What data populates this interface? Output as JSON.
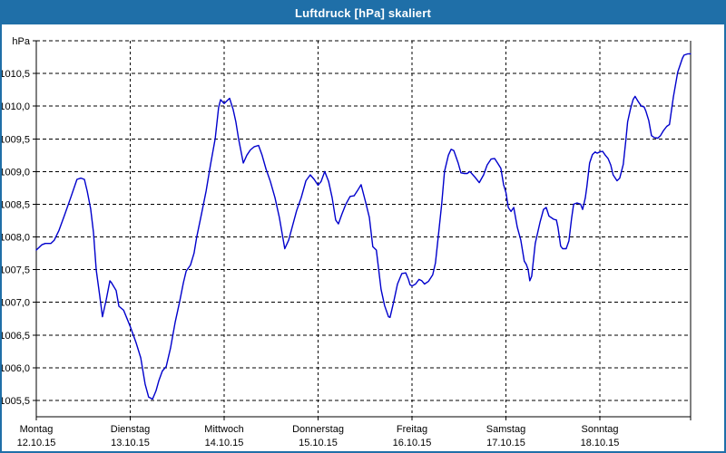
{
  "window": {
    "title": "Luftdruck [hPa] skaliert"
  },
  "colors": {
    "titlebar_bg": "#1f6fa8",
    "window_border": "#1f6fa8",
    "line": "#0000cc",
    "grid": "#000000",
    "frame": "#000000",
    "background": "#ffffff"
  },
  "chart_data": {
    "type": "line",
    "title": "Luftdruck [hPa] skaliert",
    "y_unit_label": "hPa",
    "decimal_separator": ",",
    "grid": "dashed",
    "legend_position": "none",
    "ylim": [
      1005.25,
      1011.0
    ],
    "x_max_hours": 167.2,
    "y_ticks": [
      {
        "value": 1011.0,
        "label": ""
      },
      {
        "value": 1010.5,
        "label": "1010,5"
      },
      {
        "value": 1010.0,
        "label": "1010,0"
      },
      {
        "value": 1009.5,
        "label": "1009,5"
      },
      {
        "value": 1009.0,
        "label": "1009,0"
      },
      {
        "value": 1008.5,
        "label": "1008,5"
      },
      {
        "value": 1008.0,
        "label": "1008,0"
      },
      {
        "value": 1007.5,
        "label": "1007,5"
      },
      {
        "value": 1007.0,
        "label": "1007,0"
      },
      {
        "value": 1006.5,
        "label": "1006,5"
      },
      {
        "value": 1006.0,
        "label": "1006,0"
      },
      {
        "value": 1005.5,
        "label": "1005,5"
      }
    ],
    "x_days": [
      {
        "name": "Montag",
        "date": "12.10.15"
      },
      {
        "name": "Dienstag",
        "date": "13.10.15"
      },
      {
        "name": "Mittwoch",
        "date": "14.10.15"
      },
      {
        "name": "Donnerstag",
        "date": "15.10.15"
      },
      {
        "name": "Freitag",
        "date": "16.10.15"
      },
      {
        "name": "Samstag",
        "date": "17.10.15"
      },
      {
        "name": "Sonntag",
        "date": "18.10.15"
      }
    ],
    "series": [
      {
        "name": "Luftdruck",
        "color": "#0000cc",
        "points": [
          [
            0,
            1007.8
          ],
          [
            1.4,
            1007.88
          ],
          [
            2.3,
            1007.9
          ],
          [
            3.7,
            1007.9
          ],
          [
            4.6,
            1007.95
          ],
          [
            5.8,
            1008.1
          ],
          [
            7.2,
            1008.33
          ],
          [
            8.8,
            1008.6
          ],
          [
            10.4,
            1008.88
          ],
          [
            11.4,
            1008.9
          ],
          [
            12.3,
            1008.88
          ],
          [
            13,
            1008.7
          ],
          [
            13.9,
            1008.43
          ],
          [
            14.6,
            1008.07
          ],
          [
            15.3,
            1007.5
          ],
          [
            16.2,
            1007.1
          ],
          [
            16.9,
            1006.78
          ],
          [
            17.9,
            1007.05
          ],
          [
            18.8,
            1007.33
          ],
          [
            19.2,
            1007.3
          ],
          [
            20.4,
            1007.18
          ],
          [
            21.1,
            1006.94
          ],
          [
            22.3,
            1006.88
          ],
          [
            23.2,
            1006.75
          ],
          [
            24,
            1006.63
          ],
          [
            24.8,
            1006.5
          ],
          [
            25.5,
            1006.38
          ],
          [
            26.7,
            1006.15
          ],
          [
            27.8,
            1005.75
          ],
          [
            28.7,
            1005.55
          ],
          [
            29.7,
            1005.52
          ],
          [
            30.6,
            1005.65
          ],
          [
            31.3,
            1005.8
          ],
          [
            32.2,
            1005.95
          ],
          [
            33.2,
            1006.02
          ],
          [
            34.3,
            1006.3
          ],
          [
            35.5,
            1006.7
          ],
          [
            36.6,
            1007.0
          ],
          [
            37.6,
            1007.3
          ],
          [
            38.3,
            1007.48
          ],
          [
            39.4,
            1007.57
          ],
          [
            40.3,
            1007.75
          ],
          [
            41,
            1008.0
          ],
          [
            42.2,
            1008.35
          ],
          [
            43.4,
            1008.7
          ],
          [
            44.5,
            1009.1
          ],
          [
            45.7,
            1009.5
          ],
          [
            46.6,
            1009.98
          ],
          [
            47.1,
            1010.1
          ],
          [
            48,
            1010.04
          ],
          [
            48.7,
            1010.08
          ],
          [
            49.4,
            1010.12
          ],
          [
            50.3,
            1009.95
          ],
          [
            51,
            1009.76
          ],
          [
            51.7,
            1009.5
          ],
          [
            52.9,
            1009.13
          ],
          [
            53.8,
            1009.25
          ],
          [
            54.7,
            1009.33
          ],
          [
            55.7,
            1009.38
          ],
          [
            56.8,
            1009.4
          ],
          [
            57.7,
            1009.25
          ],
          [
            58.7,
            1009.04
          ],
          [
            59.8,
            1008.85
          ],
          [
            61,
            1008.6
          ],
          [
            62.1,
            1008.3
          ],
          [
            63.5,
            1007.82
          ],
          [
            64.5,
            1007.95
          ],
          [
            66.5,
            1008.4
          ],
          [
            67.7,
            1008.6
          ],
          [
            68.9,
            1008.86
          ],
          [
            70,
            1008.95
          ],
          [
            71,
            1008.88
          ],
          [
            72,
            1008.79
          ],
          [
            72.8,
            1008.85
          ],
          [
            73.7,
            1009.0
          ],
          [
            74.7,
            1008.85
          ],
          [
            75.6,
            1008.6
          ],
          [
            76.5,
            1008.26
          ],
          [
            77.2,
            1008.2
          ],
          [
            78.1,
            1008.35
          ],
          [
            79.1,
            1008.5
          ],
          [
            80.2,
            1008.62
          ],
          [
            81.2,
            1008.63
          ],
          [
            82.1,
            1008.71
          ],
          [
            83,
            1008.8
          ],
          [
            84.2,
            1008.52
          ],
          [
            85.1,
            1008.3
          ],
          [
            86,
            1007.85
          ],
          [
            86.9,
            1007.8
          ],
          [
            88.1,
            1007.2
          ],
          [
            89,
            1006.95
          ],
          [
            90,
            1006.78
          ],
          [
            90.4,
            1006.77
          ],
          [
            91.3,
            1007.0
          ],
          [
            92.3,
            1007.28
          ],
          [
            93.4,
            1007.44
          ],
          [
            94.4,
            1007.45
          ],
          [
            95.1,
            1007.35
          ],
          [
            95.5,
            1007.27
          ],
          [
            96,
            1007.25
          ],
          [
            96.9,
            1007.28
          ],
          [
            97.8,
            1007.35
          ],
          [
            98.5,
            1007.33
          ],
          [
            99.2,
            1007.28
          ],
          [
            100.2,
            1007.32
          ],
          [
            101.3,
            1007.42
          ],
          [
            102,
            1007.6
          ],
          [
            102.7,
            1008.0
          ],
          [
            103.6,
            1008.5
          ],
          [
            104.3,
            1009.0
          ],
          [
            105.3,
            1009.25
          ],
          [
            106,
            1009.34
          ],
          [
            106.7,
            1009.32
          ],
          [
            107.8,
            1009.13
          ],
          [
            108.5,
            1008.98
          ],
          [
            109.4,
            1008.97
          ],
          [
            110.1,
            1008.97
          ],
          [
            110.8,
            1009.0
          ],
          [
            112,
            1008.92
          ],
          [
            113.2,
            1008.83
          ],
          [
            114.3,
            1008.95
          ],
          [
            115.2,
            1009.1
          ],
          [
            116.2,
            1009.19
          ],
          [
            117.1,
            1009.2
          ],
          [
            118,
            1009.12
          ],
          [
            118.7,
            1009.05
          ],
          [
            119.4,
            1008.8
          ],
          [
            120,
            1008.68
          ],
          [
            120.6,
            1008.45
          ],
          [
            121.3,
            1008.39
          ],
          [
            122,
            1008.45
          ],
          [
            122.9,
            1008.15
          ],
          [
            123.8,
            1007.95
          ],
          [
            124.7,
            1007.63
          ],
          [
            125.2,
            1007.58
          ],
          [
            125.7,
            1007.5
          ],
          [
            126.1,
            1007.33
          ],
          [
            126.6,
            1007.4
          ],
          [
            127.5,
            1007.9
          ],
          [
            128.7,
            1008.22
          ],
          [
            129.6,
            1008.42
          ],
          [
            130.3,
            1008.45
          ],
          [
            131,
            1008.32
          ],
          [
            132.2,
            1008.27
          ],
          [
            132.9,
            1008.26
          ],
          [
            133.3,
            1008.15
          ],
          [
            134,
            1007.86
          ],
          [
            134.5,
            1007.82
          ],
          [
            135.4,
            1007.82
          ],
          [
            136.1,
            1007.94
          ],
          [
            136.8,
            1008.29
          ],
          [
            137.3,
            1008.5
          ],
          [
            138.2,
            1008.52
          ],
          [
            139.1,
            1008.5
          ],
          [
            139.6,
            1008.42
          ],
          [
            140.3,
            1008.6
          ],
          [
            140.7,
            1008.77
          ],
          [
            141.4,
            1009.13
          ],
          [
            142.1,
            1009.26
          ],
          [
            142.8,
            1009.3
          ],
          [
            143.3,
            1009.28
          ],
          [
            144,
            1009.3
          ],
          [
            144.7,
            1009.31
          ],
          [
            145.4,
            1009.25
          ],
          [
            146.1,
            1009.2
          ],
          [
            146.8,
            1009.1
          ],
          [
            147.4,
            1008.95
          ],
          [
            148.4,
            1008.86
          ],
          [
            149.1,
            1008.9
          ],
          [
            150,
            1009.11
          ],
          [
            150.7,
            1009.5
          ],
          [
            151.1,
            1009.76
          ],
          [
            151.8,
            1009.95
          ],
          [
            152.5,
            1010.1
          ],
          [
            153,
            1010.15
          ],
          [
            153.7,
            1010.08
          ],
          [
            154.6,
            1010.0
          ],
          [
            155.3,
            1009.99
          ],
          [
            155.8,
            1009.92
          ],
          [
            156.5,
            1009.78
          ],
          [
            157.2,
            1009.55
          ],
          [
            157.9,
            1009.52
          ],
          [
            158.8,
            1009.51
          ],
          [
            159.5,
            1009.55
          ],
          [
            160.2,
            1009.62
          ],
          [
            161.1,
            1009.69
          ],
          [
            161.8,
            1009.72
          ],
          [
            162.8,
            1010.14
          ],
          [
            163.9,
            1010.52
          ],
          [
            165.1,
            1010.73
          ],
          [
            165.5,
            1010.78
          ],
          [
            166.5,
            1010.8
          ],
          [
            167.2,
            1010.8
          ]
        ]
      }
    ]
  }
}
